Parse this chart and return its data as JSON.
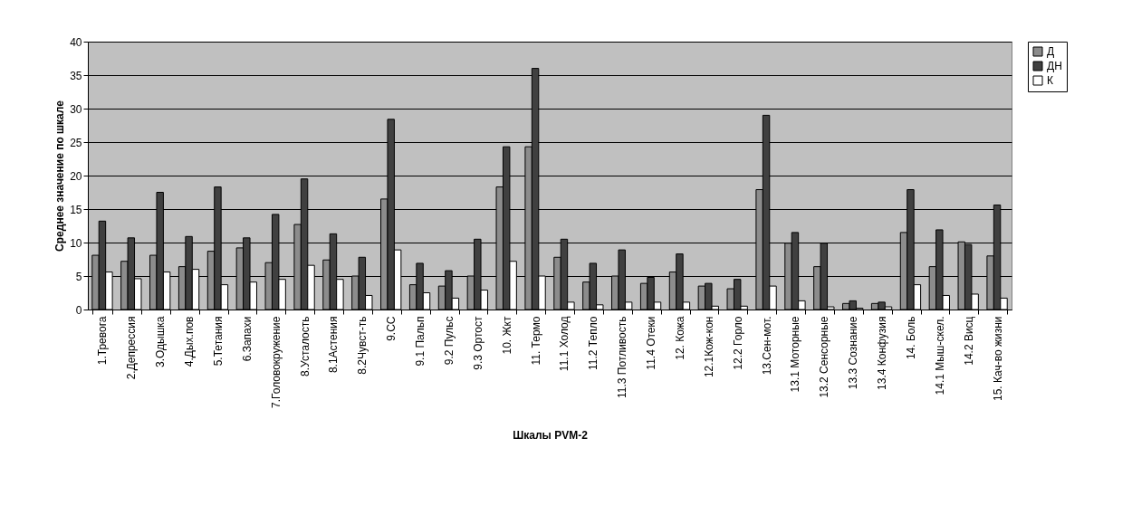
{
  "chart_data": {
    "type": "bar",
    "xlabel": "Шкалы PVM-2",
    "ylabel": "Среднее значение по шкале",
    "categories": [
      "1.Тревога",
      "2.Депрессия",
      "3.Одышка",
      "4.Дых.пов",
      "5.Тетания",
      "6.Запахи",
      "7.Головокружение",
      "8.Усталость",
      "8.1Астения",
      "8.2Чувст-ть",
      "9.СС",
      "9.1 Пальп",
      "9.2 Пульс",
      "9.3 Ортост",
      "10. Жкт",
      "11. Термо",
      "11.1 Холод",
      "11.2 Тепло",
      "11.3  Потливость",
      "11.4 Отеки",
      "12. Кожа",
      "12.1Кож-кон",
      "12.2 Горло",
      "13.Сен-мот.",
      "13.1 Моторные",
      "13.2 Сенсорные",
      "13.3 Сознание",
      "13.4 Конфузия",
      "14. Боль",
      "14.1 Мыш-скел.",
      "14.2 Висц",
      "15. Кач-во жизни"
    ],
    "series": [
      {
        "name": "Д",
        "color": "#8c8c8c",
        "values": [
          8.1,
          7.2,
          8.1,
          6.4,
          8.7,
          9.2,
          7.0,
          12.7,
          7.4,
          5.0,
          16.5,
          3.7,
          3.5,
          5.0,
          18.3,
          24.3,
          7.8,
          4.1,
          5.0,
          3.9,
          5.6,
          3.5,
          3.1,
          17.9,
          9.9,
          6.4,
          0.9,
          0.9,
          11.5,
          6.4,
          10.1,
          8.0
        ]
      },
      {
        "name": "ДН",
        "color": "#404040",
        "values": [
          13.2,
          10.7,
          17.5,
          10.9,
          18.3,
          10.7,
          14.2,
          19.5,
          11.3,
          7.8,
          28.4,
          6.9,
          5.8,
          10.5,
          24.3,
          36.0,
          10.5,
          6.9,
          8.9,
          4.8,
          8.3,
          3.9,
          4.5,
          29.0,
          11.5,
          9.9,
          1.3,
          1.1,
          17.9,
          11.9,
          9.7,
          15.6
        ]
      },
      {
        "name": "К",
        "color": "#ffffff",
        "values": [
          5.6,
          4.6,
          5.6,
          6.0,
          3.7,
          4.1,
          4.5,
          6.6,
          4.5,
          2.1,
          8.9,
          2.5,
          1.7,
          2.9,
          7.2,
          5.0,
          1.1,
          0.7,
          1.1,
          1.1,
          1.1,
          0.5,
          0.5,
          3.5,
          1.3,
          0.4,
          0.2,
          0.4,
          3.7,
          2.1,
          2.3,
          1.7
        ]
      }
    ],
    "ylim": [
      0,
      40
    ],
    "yticks": [
      0,
      5,
      10,
      15,
      20,
      25,
      30,
      35,
      40
    ],
    "grid": "y",
    "legend": "right"
  }
}
